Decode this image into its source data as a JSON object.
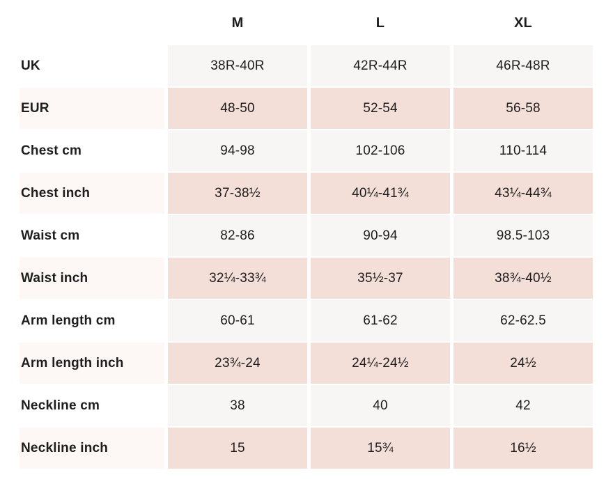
{
  "table": {
    "title": "size-chart",
    "column_headers": [
      "M",
      "L",
      "XL"
    ],
    "rows": [
      {
        "label": "UK",
        "shade": "light",
        "values": [
          "38R-40R",
          "42R-44R",
          "46R-48R"
        ]
      },
      {
        "label": "EUR",
        "shade": "pink",
        "values": [
          "48-50",
          "52-54",
          "56-58"
        ]
      },
      {
        "label": "Chest cm",
        "shade": "light",
        "values": [
          "94-98",
          "102-106",
          "110-114"
        ]
      },
      {
        "label": "Chest inch",
        "shade": "pink",
        "values": [
          "37-38½",
          "40¼-41¾",
          "43¼-44¾"
        ]
      },
      {
        "label": "Waist cm",
        "shade": "light",
        "values": [
          "82-86",
          "90-94",
          "98.5-103"
        ]
      },
      {
        "label": "Waist inch",
        "shade": "pink",
        "values": [
          "32¼-33¾",
          "35½-37",
          "38¾-40½"
        ]
      },
      {
        "label": "Arm length cm",
        "shade": "light",
        "values": [
          "60-61",
          "61-62",
          "62-62.5"
        ]
      },
      {
        "label": "Arm length inch",
        "shade": "pink",
        "values": [
          "23¾-24",
          "24¼-24½",
          "24½"
        ]
      },
      {
        "label": "Neckline cm",
        "shade": "light",
        "values": [
          "38",
          "40",
          "42"
        ]
      },
      {
        "label": "Neckline inch",
        "shade": "pink",
        "values": [
          "15",
          "15¾",
          "16½"
        ]
      }
    ],
    "colors": {
      "row_light": "#f8f6f4",
      "row_pink": "#f4ded8",
      "label_pink_tint": "#fdf8f6",
      "text": "#1d1d1d",
      "page_bg": "#ffffff"
    }
  }
}
